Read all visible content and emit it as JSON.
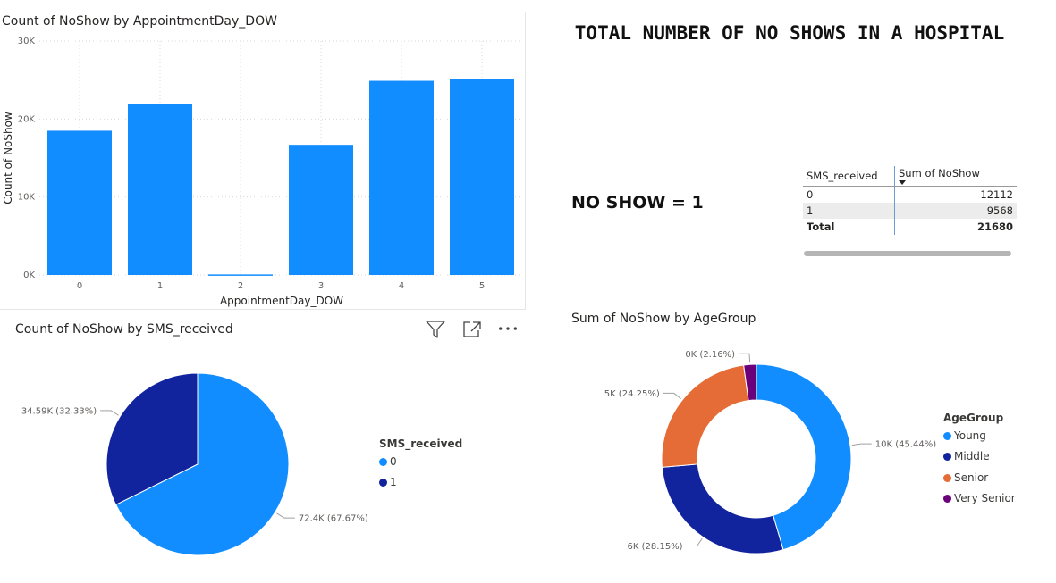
{
  "header": {
    "title": "TOTAL NUMBER OF NO SHOWS IN A HOSPITAL",
    "note": "NO SHOW = 1"
  },
  "toolbar": {
    "filter_icon": "filter-icon",
    "focus_icon": "focus-mode-icon",
    "more_icon": "more-options-icon"
  },
  "matrix": {
    "columns": [
      "SMS_received",
      "Sum of NoShow"
    ],
    "rows": [
      {
        "label": "0",
        "value": "12112"
      },
      {
        "label": "1",
        "value": "9568"
      }
    ],
    "total": {
      "label": "Total",
      "value": "21680"
    }
  },
  "colors": {
    "bar": "#118dff",
    "young": "#118dff",
    "middle": "#12239e",
    "senior": "#e66c37",
    "very_senior": "#6b007b"
  },
  "chart_data": [
    {
      "type": "bar",
      "title": "Count of NoShow by AppointmentDay_DOW",
      "xlabel": "AppointmentDay_DOW",
      "ylabel": "Count of NoShow",
      "categories": [
        "0",
        "1",
        "2",
        "3",
        "4",
        "5"
      ],
      "values": [
        18500,
        21950,
        70,
        16700,
        24900,
        25100
      ],
      "ylim": [
        0,
        30000
      ],
      "yticks": [
        "0K",
        "10K",
        "20K",
        "30K"
      ],
      "grid": true
    },
    {
      "type": "pie",
      "title": "Count of NoShow by SMS_received",
      "legend_title": "SMS_received",
      "legend_position": "right",
      "slices": [
        {
          "name": "0",
          "value": 72400,
          "percent": 67.67,
          "label": "72.4K (67.67%)",
          "color": "#118dff"
        },
        {
          "name": "1",
          "value": 34590,
          "percent": 32.33,
          "label": "34.59K (32.33%)",
          "color": "#12239e"
        }
      ]
    },
    {
      "type": "pie",
      "subtype": "donut",
      "title": "Sum of NoShow by AgeGroup",
      "legend_title": "AgeGroup",
      "legend_position": "right",
      "slices": [
        {
          "name": "Young",
          "percent": 45.44,
          "label": "10K (45.44%)",
          "color": "#118dff"
        },
        {
          "name": "Middle",
          "percent": 28.15,
          "label": "6K (28.15%)",
          "color": "#12239e"
        },
        {
          "name": "Senior",
          "percent": 24.25,
          "label": "5K (24.25%)",
          "color": "#e66c37"
        },
        {
          "name": "Very Senior",
          "percent": 2.16,
          "label": "0K (2.16%)",
          "color": "#6b007b"
        }
      ]
    }
  ]
}
